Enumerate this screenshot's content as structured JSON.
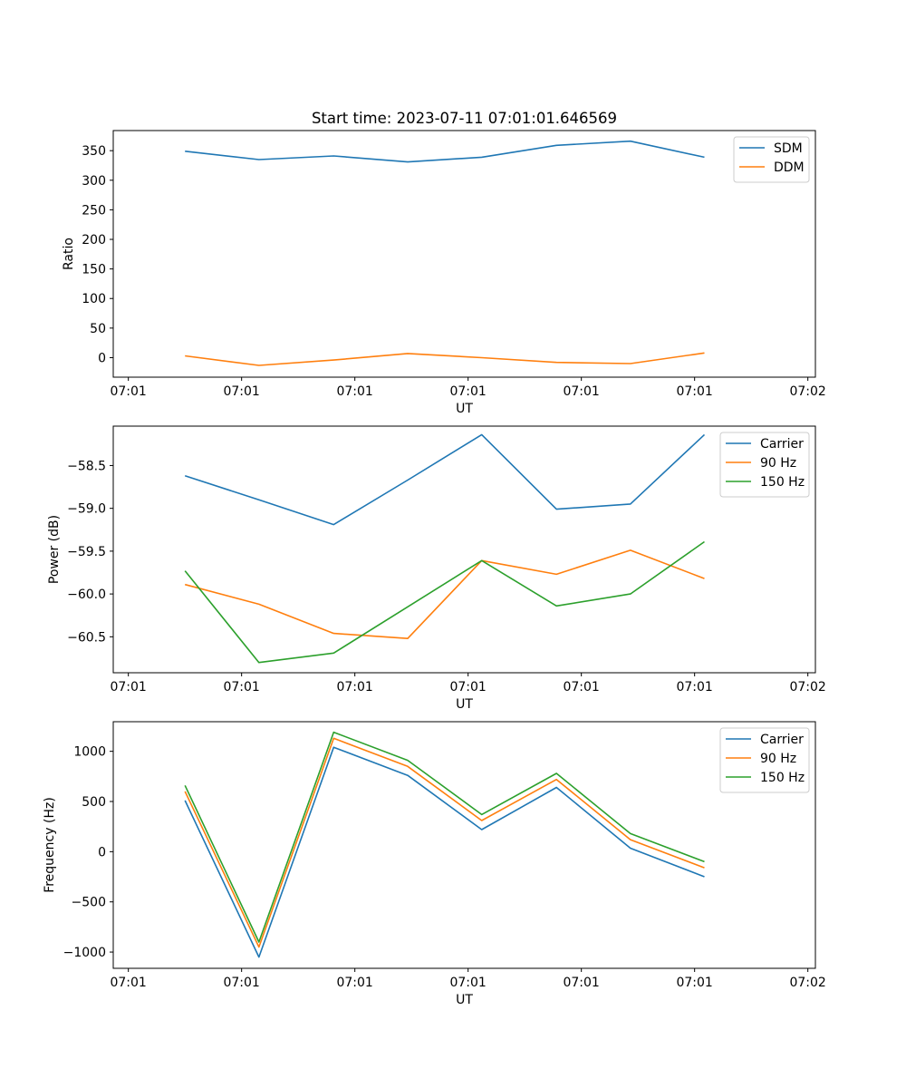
{
  "chart_data": [
    {
      "type": "line",
      "title": "Start time: 2023-07-11 07:01:01.646569",
      "xlabel": "UT",
      "ylabel": "Ratio",
      "ylim": [
        -33,
        384
      ],
      "yticks": [
        0,
        50,
        100,
        150,
        200,
        250,
        300,
        350
      ],
      "yticklabels": [
        "0",
        "50",
        "100",
        "150",
        "200",
        "250",
        "300",
        "350"
      ],
      "xlim": [
        -0.2,
        9.1
      ],
      "xticks": [
        0,
        1.5,
        3,
        4.5,
        6,
        7.5,
        9
      ],
      "xticklabels": [
        "07:01",
        "07:01",
        "07:01",
        "07:01",
        "07:01",
        "07:01",
        "07:02"
      ],
      "x": [
        0.75,
        1.73,
        2.72,
        3.7,
        4.68,
        5.67,
        6.65,
        7.63
      ],
      "legend_loc": "upper right",
      "series": [
        {
          "name": "SDM",
          "color": "#1f77b4",
          "values": [
            349,
            335,
            341,
            331,
            339,
            359,
            366,
            339
          ]
        },
        {
          "name": "DDM",
          "color": "#ff7f0e",
          "values": [
            3,
            -13,
            -4,
            7,
            0,
            -8,
            -10,
            8
          ]
        }
      ]
    },
    {
      "type": "line",
      "title": "",
      "xlabel": "UT",
      "ylabel": "Power (dB)",
      "ylim": [
        -60.92,
        -58.04
      ],
      "yticks": [
        -60.5,
        -60.0,
        -59.5,
        -59.0,
        -58.5
      ],
      "yticklabels": [
        "−60.5",
        "−60.0",
        "−59.5",
        "−59.0",
        "−58.5"
      ],
      "xlim": [
        -0.2,
        9.1
      ],
      "xticks": [
        0,
        1.5,
        3,
        4.5,
        6,
        7.5,
        9
      ],
      "xticklabels": [
        "07:01",
        "07:01",
        "07:01",
        "07:01",
        "07:01",
        "07:01",
        "07:02"
      ],
      "x": [
        0.75,
        1.73,
        2.72,
        3.7,
        4.68,
        5.67,
        6.65,
        7.63
      ],
      "legend_loc": "upper right",
      "series": [
        {
          "name": "Carrier",
          "color": "#1f77b4",
          "values": [
            -58.62,
            -58.9,
            -59.19,
            -58.67,
            -58.14,
            -59.01,
            -58.95,
            -58.14
          ]
        },
        {
          "name": "90 Hz",
          "color": "#ff7f0e",
          "values": [
            -59.89,
            -60.12,
            -60.46,
            -60.52,
            -59.61,
            -59.77,
            -59.49,
            -59.82
          ]
        },
        {
          "name": "150 Hz",
          "color": "#2ca02c",
          "values": [
            -59.73,
            -60.8,
            -60.69,
            -60.15,
            -59.61,
            -60.14,
            -60.0,
            -59.39
          ]
        }
      ]
    },
    {
      "type": "line",
      "title": "",
      "xlabel": "UT",
      "ylabel": "Frequency (Hz)",
      "ylim": [
        -1162,
        1295
      ],
      "yticks": [
        -1000,
        -500,
        0,
        500,
        1000
      ],
      "yticklabels": [
        "−1000",
        "−500",
        "0",
        "500",
        "1000"
      ],
      "xlim": [
        -0.2,
        9.1
      ],
      "xticks": [
        0,
        1.5,
        3,
        4.5,
        6,
        7.5,
        9
      ],
      "xticklabels": [
        "07:01",
        "07:01",
        "07:01",
        "07:01",
        "07:01",
        "07:01",
        "07:02"
      ],
      "x": [
        0.75,
        1.73,
        2.72,
        3.7,
        4.68,
        5.67,
        6.65,
        7.63
      ],
      "legend_loc": "upper right",
      "series": [
        {
          "name": "Carrier",
          "color": "#1f77b4",
          "values": [
            510,
            -1050,
            1040,
            760,
            220,
            640,
            35,
            -250
          ]
        },
        {
          "name": "90 Hz",
          "color": "#ff7f0e",
          "values": [
            600,
            -950,
            1130,
            850,
            310,
            720,
            120,
            -160
          ]
        },
        {
          "name": "150 Hz",
          "color": "#2ca02c",
          "values": [
            660,
            -900,
            1190,
            910,
            370,
            780,
            180,
            -100
          ]
        }
      ]
    }
  ]
}
